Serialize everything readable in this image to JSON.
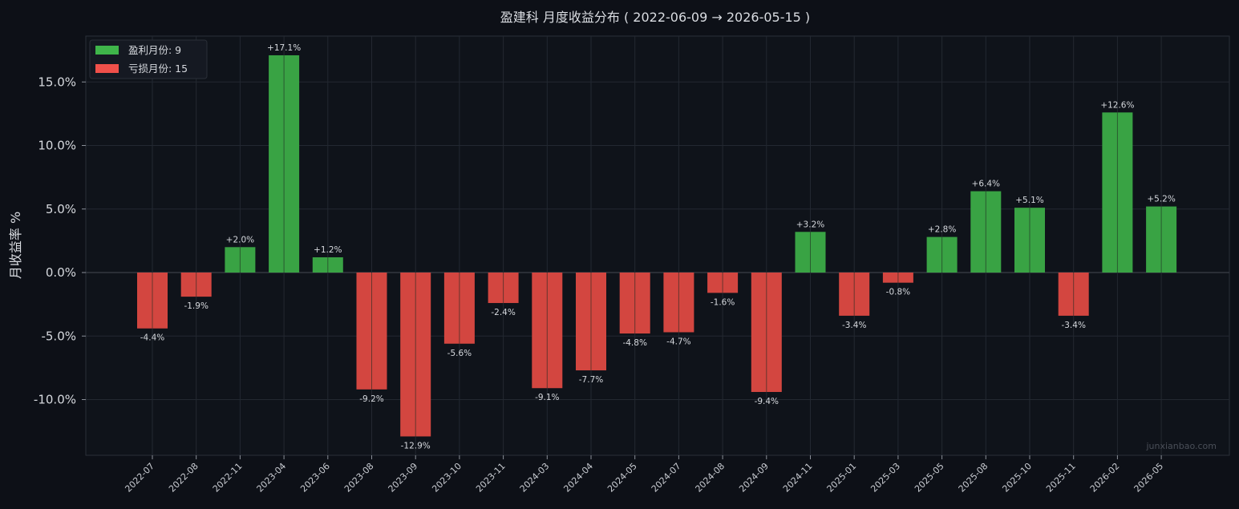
{
  "chart_data": {
    "type": "bar",
    "title": "盈建科 月度收益分布 ( 2022-06-09 → 2026-05-15 )",
    "ylabel": "月收益率 %",
    "ylim": [
      -14.3,
      18.6
    ],
    "yticks": [
      -10,
      -5,
      0,
      5,
      10,
      15
    ],
    "ytick_labels": [
      "-10.0%",
      "-5.0%",
      "0.0%",
      "5.0%",
      "10.0%",
      "15.0%"
    ],
    "grid": true,
    "legend_position": "top-left",
    "legend": [
      {
        "label": "盈利月份: 9",
        "color": "#3fb54a"
      },
      {
        "label": "亏损月份: 15",
        "color": "#f0504a"
      }
    ],
    "colors": {
      "positive": "#39a344",
      "negative": "#d34640",
      "background": "#0d1017",
      "plot_bg": "#0f131a",
      "grid": "#232831"
    },
    "categories": [
      "2022-07",
      "2022-08",
      "2022-11",
      "2023-04",
      "2023-06",
      "2023-08",
      "2023-09",
      "2023-10",
      "2023-11",
      "2024-03",
      "2024-04",
      "2024-05",
      "2024-07",
      "2024-08",
      "2024-09",
      "2024-11",
      "2025-01",
      "2025-03",
      "2025-05",
      "2025-08",
      "2025-10",
      "2025-11",
      "2026-02",
      "2026-05"
    ],
    "values": [
      -4.4,
      -1.9,
      2.0,
      17.1,
      1.2,
      -9.2,
      -12.9,
      -5.6,
      -2.4,
      -9.1,
      -7.7,
      -4.8,
      -4.7,
      -1.6,
      -9.4,
      3.2,
      -3.4,
      -0.8,
      2.8,
      6.4,
      5.1,
      -3.4,
      12.6,
      5.2
    ],
    "data_labels": [
      "-4.4%",
      "-1.9%",
      "+2.0%",
      "+17.1%",
      "+1.2%",
      "-9.2%",
      "-12.9%",
      "-5.6%",
      "-2.4%",
      "-9.1%",
      "-7.7%",
      "-4.8%",
      "-4.7%",
      "-1.6%",
      "-9.4%",
      "+3.2%",
      "-3.4%",
      "-0.8%",
      "+2.8%",
      "+6.4%",
      "+5.1%",
      "-3.4%",
      "+12.6%",
      "+5.2%"
    ],
    "watermark": "junxianbao.com"
  }
}
